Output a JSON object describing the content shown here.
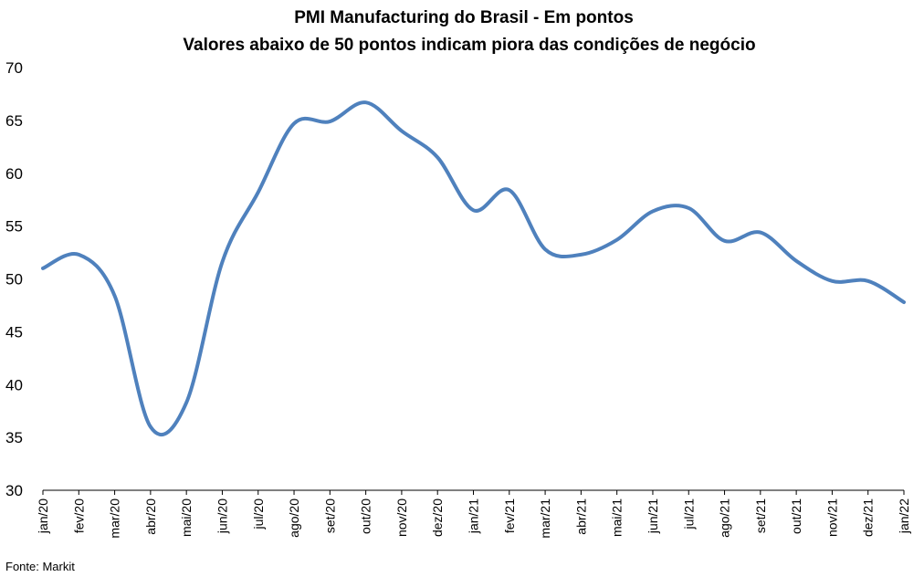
{
  "chart_data": {
    "type": "line",
    "title": "PMI Manufacturing do Brasil - Em pontos",
    "subtitle": "Valores abaixo de 50 pontos indicam piora das condições de negócio",
    "xlabel": "",
    "ylabel": "",
    "ylim": [
      30,
      70
    ],
    "yticks": [
      "70",
      "65",
      "60",
      "55",
      "50",
      "45",
      "40",
      "35",
      "30"
    ],
    "ytick_values": [
      70,
      65,
      60,
      55,
      50,
      45,
      40,
      35,
      30
    ],
    "grid": false,
    "legend": "none",
    "categories": [
      "jan/20",
      "fev/20",
      "mar/20",
      "abr/20",
      "mai/20",
      "jun/20",
      "jul/20",
      "ago/20",
      "set/20",
      "out/20",
      "nov/20",
      "dez/20",
      "jan/21",
      "fev/21",
      "mar/21",
      "abr/21",
      "mai/21",
      "jun/21",
      "jul/21",
      "ago/21",
      "set/21",
      "out/21",
      "nov/21",
      "dez/21",
      "jan/22"
    ],
    "series": [
      {
        "values": [
          51.0,
          52.3,
          48.4,
          36.0,
          38.3,
          51.6,
          58.2,
          64.7,
          64.9,
          66.7,
          64.0,
          61.5,
          56.5,
          58.4,
          52.8,
          52.3,
          53.7,
          56.4,
          56.7,
          53.6,
          54.4,
          51.7,
          49.8,
          49.8,
          47.8
        ]
      }
    ],
    "colors": {
      "series": "#4f81bd",
      "axis": "#000000",
      "text": "#000000"
    }
  },
  "source": "Fonte: Markit"
}
